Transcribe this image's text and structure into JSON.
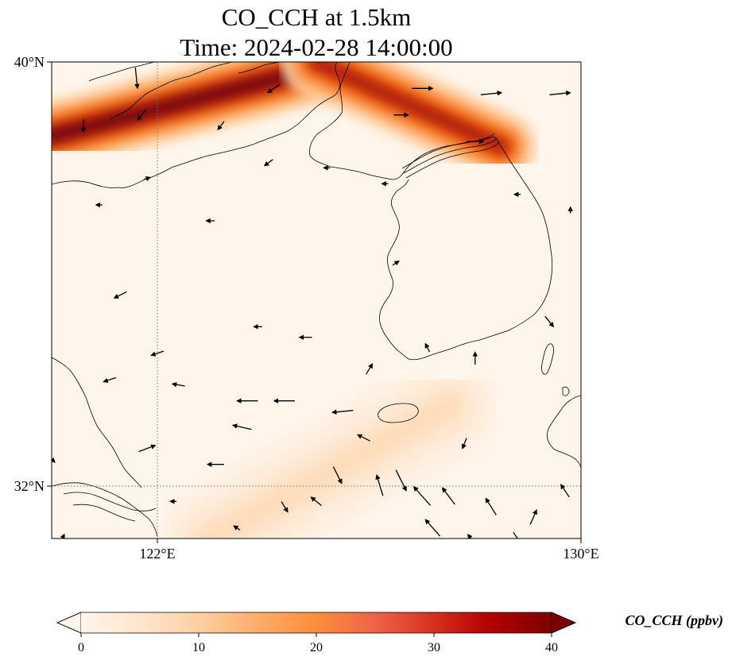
{
  "title": {
    "line1": "CO_CCH at 1.5km",
    "line2": "Time: 2024-02-28 14:00:00"
  },
  "map": {
    "lon_range": [
      120,
      130
    ],
    "lat_range": [
      31,
      40
    ],
    "gridlines": {
      "lon": [
        122
      ],
      "lat": [
        32
      ],
      "style": "dotted"
    },
    "x_ticks": [
      "122°E",
      "130°E"
    ],
    "y_ticks": [
      "40°N",
      "32°N"
    ]
  },
  "colorbar": {
    "label": "CO_CCH (ppbv)",
    "ticks": [
      "0",
      "10",
      "20",
      "30",
      "40"
    ],
    "range": [
      0,
      40
    ],
    "extend": "both",
    "colormap": [
      "#fff5eb",
      "#fee6ce",
      "#fdd0a2",
      "#fdae6b",
      "#fd8d3c",
      "#f16913",
      "#d94801",
      "#a50f15",
      "#67000d"
    ]
  },
  "chart_data": {
    "type": "heatmap",
    "title": "CO_CCH at 1.5km / Time: 2024-02-28 14:00:00",
    "variable": "CO_CCH",
    "units": "ppbv",
    "xlim": [
      120,
      130
    ],
    "ylim": [
      31,
      40
    ],
    "value_range": [
      0,
      40
    ],
    "features": [
      {
        "name": "band-northwest",
        "from": [
          120.0,
          38.6
        ],
        "to": [
          125.5,
          40.0
        ],
        "peak": 40
      },
      {
        "name": "band-northeast",
        "from": [
          125.0,
          40.0
        ],
        "to": [
          128.5,
          38.4
        ],
        "peak": 35
      },
      {
        "name": "band-southwest",
        "from": [
          123.0,
          31.0
        ],
        "to": [
          127.5,
          33.5
        ],
        "peak": 8
      }
    ],
    "wind_vectors": [
      {
        "lon": 121.6,
        "lat": 39.7,
        "u": 0.1,
        "v": -1.0
      },
      {
        "lon": 124.2,
        "lat": 39.5,
        "u": -0.6,
        "v": -0.4
      },
      {
        "lon": 127.0,
        "lat": 39.5,
        "u": 1.0,
        "v": 0.0
      },
      {
        "lon": 128.3,
        "lat": 39.4,
        "u": 1.0,
        "v": 0.1
      },
      {
        "lon": 129.6,
        "lat": 39.4,
        "u": 1.0,
        "v": 0.1
      },
      {
        "lon": 126.6,
        "lat": 39.0,
        "u": 0.7,
        "v": 0.0
      },
      {
        "lon": 121.7,
        "lat": 39.0,
        "u": -0.4,
        "v": -0.5
      },
      {
        "lon": 123.2,
        "lat": 38.8,
        "u": -0.3,
        "v": -0.4
      },
      {
        "lon": 120.6,
        "lat": 38.8,
        "u": 0.0,
        "v": -0.6
      },
      {
        "lon": 128.0,
        "lat": 38.5,
        "u": 0.8,
        "v": 0.0
      },
      {
        "lon": 124.1,
        "lat": 38.1,
        "u": -0.4,
        "v": -0.3
      },
      {
        "lon": 121.8,
        "lat": 37.8,
        "u": 0.3,
        "v": 0.1
      },
      {
        "lon": 125.2,
        "lat": 38.0,
        "u": -0.3,
        "v": 0.0
      },
      {
        "lon": 126.3,
        "lat": 37.7,
        "u": -0.3,
        "v": 0.0
      },
      {
        "lon": 128.8,
        "lat": 37.5,
        "u": -0.3,
        "v": 0.0
      },
      {
        "lon": 120.9,
        "lat": 37.3,
        "u": -0.3,
        "v": 0.0
      },
      {
        "lon": 123.0,
        "lat": 37.0,
        "u": -0.4,
        "v": 0.0
      },
      {
        "lon": 126.5,
        "lat": 36.2,
        "u": 0.3,
        "v": 0.2
      },
      {
        "lon": 121.3,
        "lat": 35.6,
        "u": -0.6,
        "v": -0.3
      },
      {
        "lon": 123.9,
        "lat": 35.0,
        "u": -0.4,
        "v": 0.0
      },
      {
        "lon": 124.8,
        "lat": 34.8,
        "u": -0.6,
        "v": 0.0
      },
      {
        "lon": 122.0,
        "lat": 34.5,
        "u": -0.6,
        "v": -0.2
      },
      {
        "lon": 126.0,
        "lat": 34.2,
        "u": 0.3,
        "v": 0.5
      },
      {
        "lon": 121.1,
        "lat": 34.0,
        "u": -0.6,
        "v": -0.2
      },
      {
        "lon": 122.4,
        "lat": 33.9,
        "u": -0.6,
        "v": 0.1
      },
      {
        "lon": 123.7,
        "lat": 33.6,
        "u": -1.0,
        "v": 0.0
      },
      {
        "lon": 124.4,
        "lat": 33.6,
        "u": -1.0,
        "v": 0.0
      },
      {
        "lon": 125.5,
        "lat": 33.4,
        "u": -1.0,
        "v": -0.1
      },
      {
        "lon": 123.6,
        "lat": 33.1,
        "u": -0.9,
        "v": 0.2
      },
      {
        "lon": 125.9,
        "lat": 32.9,
        "u": -0.6,
        "v": 0.3
      },
      {
        "lon": 127.8,
        "lat": 32.8,
        "u": -0.2,
        "v": -0.5
      },
      {
        "lon": 121.8,
        "lat": 32.7,
        "u": 0.8,
        "v": 0.3
      },
      {
        "lon": 123.1,
        "lat": 32.4,
        "u": -0.8,
        "v": 0.0
      },
      {
        "lon": 125.4,
        "lat": 32.2,
        "u": 0.4,
        "v": -0.8
      },
      {
        "lon": 126.2,
        "lat": 32.0,
        "u": -0.3,
        "v": 1.0
      },
      {
        "lon": 126.6,
        "lat": 32.1,
        "u": 0.5,
        "v": -1.0
      },
      {
        "lon": 127.0,
        "lat": 31.8,
        "u": -0.8,
        "v": 0.9
      },
      {
        "lon": 127.5,
        "lat": 31.8,
        "u": -0.6,
        "v": 0.8
      },
      {
        "lon": 128.3,
        "lat": 31.6,
        "u": -0.5,
        "v": 0.8
      },
      {
        "lon": 129.1,
        "lat": 31.4,
        "u": 0.3,
        "v": 0.7
      },
      {
        "lon": 129.7,
        "lat": 31.9,
        "u": -0.4,
        "v": 0.6
      },
      {
        "lon": 125.0,
        "lat": 31.7,
        "u": -0.5,
        "v": 0.4
      },
      {
        "lon": 124.4,
        "lat": 31.6,
        "u": 0.3,
        "v": -0.5
      },
      {
        "lon": 127.2,
        "lat": 31.2,
        "u": -0.7,
        "v": 0.8
      },
      {
        "lon": 128.0,
        "lat": 30.9,
        "u": -0.7,
        "v": 0.9
      },
      {
        "lon": 129.0,
        "lat": 30.8,
        "u": -0.6,
        "v": 0.7
      },
      {
        "lon": 122.3,
        "lat": 31.7,
        "u": -0.3,
        "v": 0.0
      },
      {
        "lon": 123.5,
        "lat": 31.2,
        "u": -0.3,
        "v": 0.2
      },
      {
        "lon": 120.2,
        "lat": 31.0,
        "u": 0.2,
        "v": 0.4
      },
      {
        "lon": 128.8,
        "lat": 31.0,
        "u": 0.4,
        "v": -0.6
      },
      {
        "lon": 120.0,
        "lat": 32.5,
        "u": 0.3,
        "v": -0.3
      },
      {
        "lon": 129.8,
        "lat": 37.2,
        "u": 0.0,
        "v": 0.3
      },
      {
        "lon": 128.0,
        "lat": 34.4,
        "u": 0.0,
        "v": 0.6
      },
      {
        "lon": 129.4,
        "lat": 35.1,
        "u": 0.4,
        "v": -0.5
      },
      {
        "lon": 127.1,
        "lat": 34.6,
        "u": -0.2,
        "v": 0.4
      }
    ]
  }
}
